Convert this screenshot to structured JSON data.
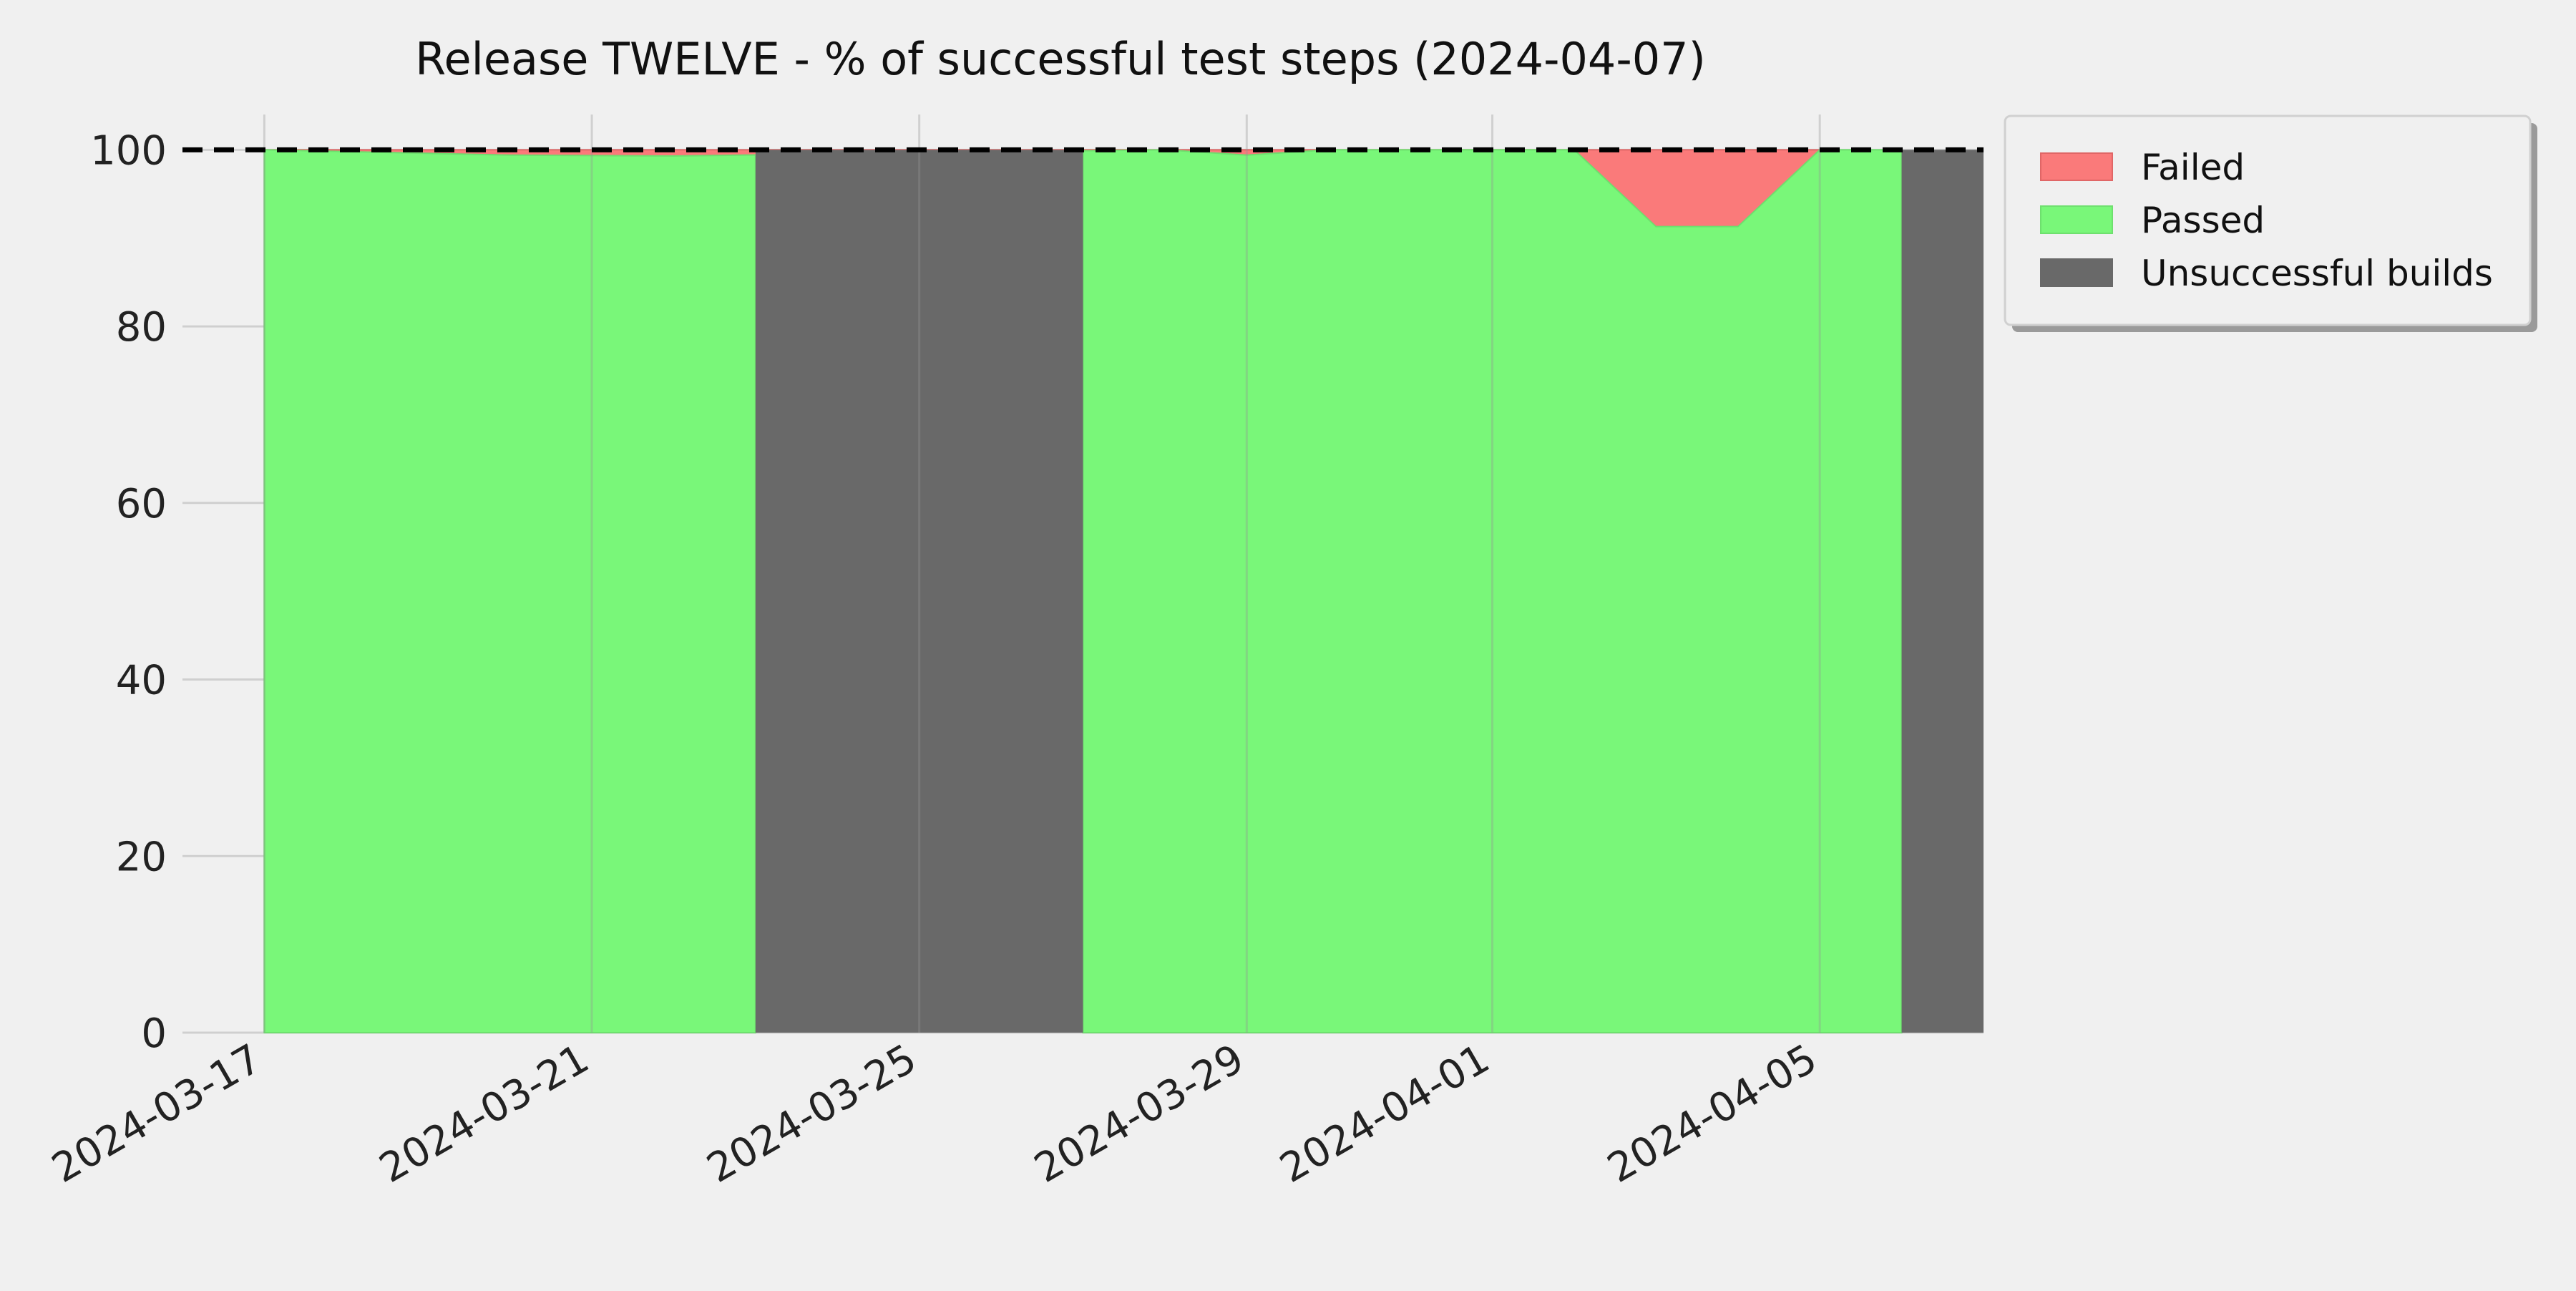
{
  "chart_data": {
    "type": "area",
    "title": "Release TWELVE - % of successful test steps (2024-04-07)",
    "xlabel": "",
    "ylabel": "",
    "ylim": [
      0,
      104
    ],
    "xlim": [
      "2024-03-16",
      "2024-04-07"
    ],
    "yticks": [
      0,
      20,
      40,
      60,
      80,
      100
    ],
    "xticks": [
      "2024-03-17",
      "2024-03-21",
      "2024-03-25",
      "2024-03-29",
      "2024-04-01",
      "2024-04-05"
    ],
    "reference_line": {
      "y": 100,
      "style": "dashed",
      "color": "#000000"
    },
    "grid": true,
    "legend": {
      "placement": "outside-top-right",
      "entries": [
        "Failed",
        "Passed",
        "Unsuccessful builds"
      ]
    },
    "series": [
      {
        "name": "Failed",
        "color": "#fa7a7a",
        "points": [
          {
            "x": "2024-03-17",
            "y": 100.0
          },
          {
            "x": "2024-03-20",
            "y": 100.0
          },
          {
            "x": "2024-03-22",
            "y": 100.0
          },
          {
            "x": "2024-03-28",
            "y": 100.0
          },
          {
            "x": "2024-03-29",
            "y": 100.0
          },
          {
            "x": "2024-03-30",
            "y": 100.0
          },
          {
            "x": "2024-03-31",
            "y": 100.0
          },
          {
            "x": "2024-04-02",
            "y": 100.0
          },
          {
            "x": "2024-04-03",
            "y": 100.0
          },
          {
            "x": "2024-04-04",
            "y": 100.0
          },
          {
            "x": "2024-04-05",
            "y": 100.0
          }
        ]
      },
      {
        "name": "Passed",
        "color": "#79f779",
        "points": [
          {
            "x": "2024-03-17",
            "y": 100.0
          },
          {
            "x": "2024-03-20",
            "y": 99.4
          },
          {
            "x": "2024-03-22",
            "y": 99.3
          },
          {
            "x": "2024-03-28",
            "y": 100.0
          },
          {
            "x": "2024-03-29",
            "y": 99.4
          },
          {
            "x": "2024-03-30",
            "y": 100.0
          },
          {
            "x": "2024-03-31",
            "y": 100.0
          },
          {
            "x": "2024-04-02",
            "y": 100.0
          },
          {
            "x": "2024-04-03",
            "y": 91.3
          },
          {
            "x": "2024-04-04",
            "y": 91.3
          },
          {
            "x": "2024-04-05",
            "y": 100.0
          }
        ]
      }
    ],
    "unsuccessful_builds": {
      "name": "Unsuccessful builds",
      "color": "#696969",
      "ranges": [
        {
          "start": "2024-03-23",
          "end": "2024-03-27",
          "value": 100
        },
        {
          "start": "2024-04-06",
          "end": "2024-04-07",
          "value": 100
        }
      ]
    },
    "passed_ranges": [
      {
        "start": "2024-03-17",
        "end": "2024-03-23"
      },
      {
        "start": "2024-03-27",
        "end": "2024-04-06"
      }
    ]
  }
}
